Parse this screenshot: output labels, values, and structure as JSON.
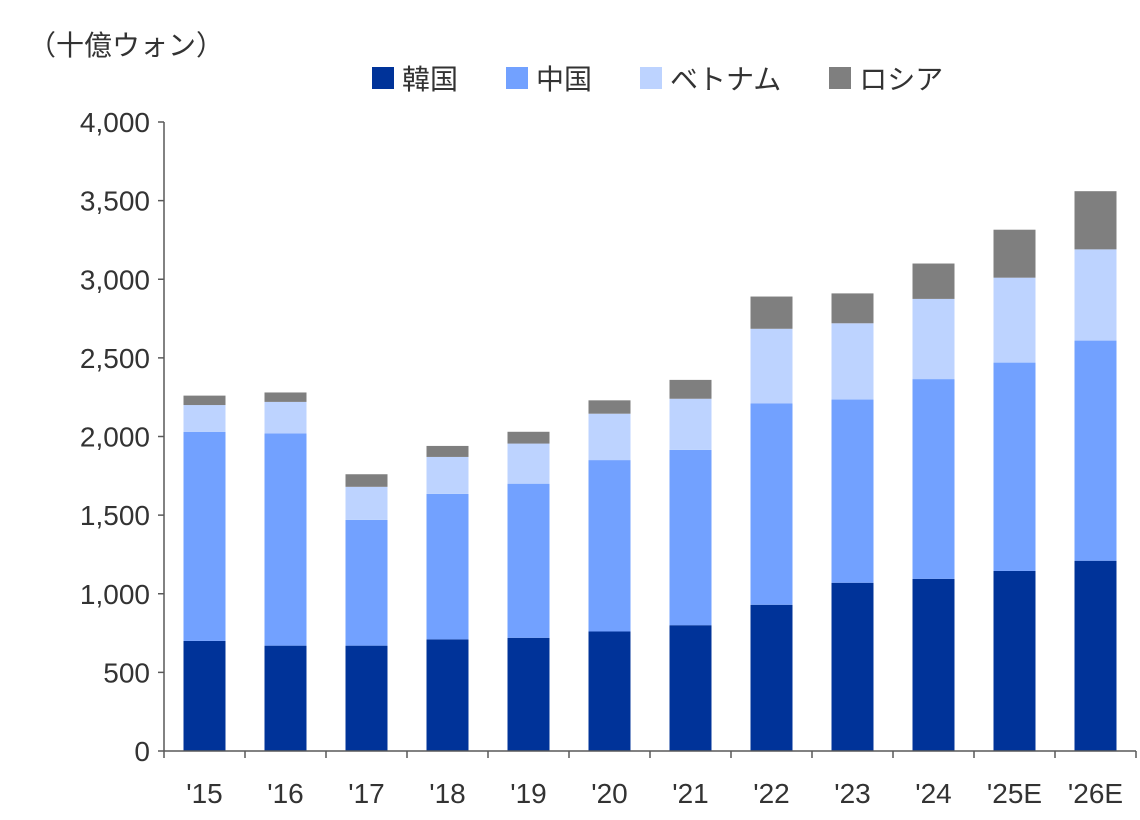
{
  "chart_data": {
    "type": "bar",
    "stacked": true,
    "unit_label": "（十億ウォン）",
    "categories": [
      "'15",
      "'16",
      "'17",
      "'18",
      "'19",
      "'20",
      "'21",
      "'22",
      "'23",
      "'24",
      "'25E",
      "'26E"
    ],
    "series": [
      {
        "name": "韓国",
        "color": "#003399",
        "values": [
          700,
          670,
          670,
          710,
          720,
          760,
          800,
          930,
          1070,
          1095,
          1145,
          1210
        ]
      },
      {
        "name": "中国",
        "color": "#72A1FF",
        "values": [
          1330,
          1350,
          800,
          925,
          980,
          1090,
          1115,
          1280,
          1165,
          1270,
          1325,
          1400
        ]
      },
      {
        "name": "ベトナム",
        "color": "#BDD3FF",
        "values": [
          170,
          200,
          210,
          235,
          255,
          295,
          325,
          475,
          485,
          510,
          540,
          580
        ]
      },
      {
        "name": "ロシア",
        "color": "#7F7F7F",
        "values": [
          60,
          60,
          80,
          70,
          75,
          85,
          120,
          205,
          190,
          225,
          305,
          370
        ]
      }
    ],
    "ylim": [
      0,
      4000
    ],
    "yticks": [
      "0",
      "500",
      "1,000",
      "1,500",
      "2,000",
      "2,500",
      "3,000",
      "3,500",
      "4,000"
    ],
    "ytick_values": [
      0,
      500,
      1000,
      1500,
      2000,
      2500,
      3000,
      3500,
      4000
    ],
    "legend_position": "top",
    "grid": false
  }
}
